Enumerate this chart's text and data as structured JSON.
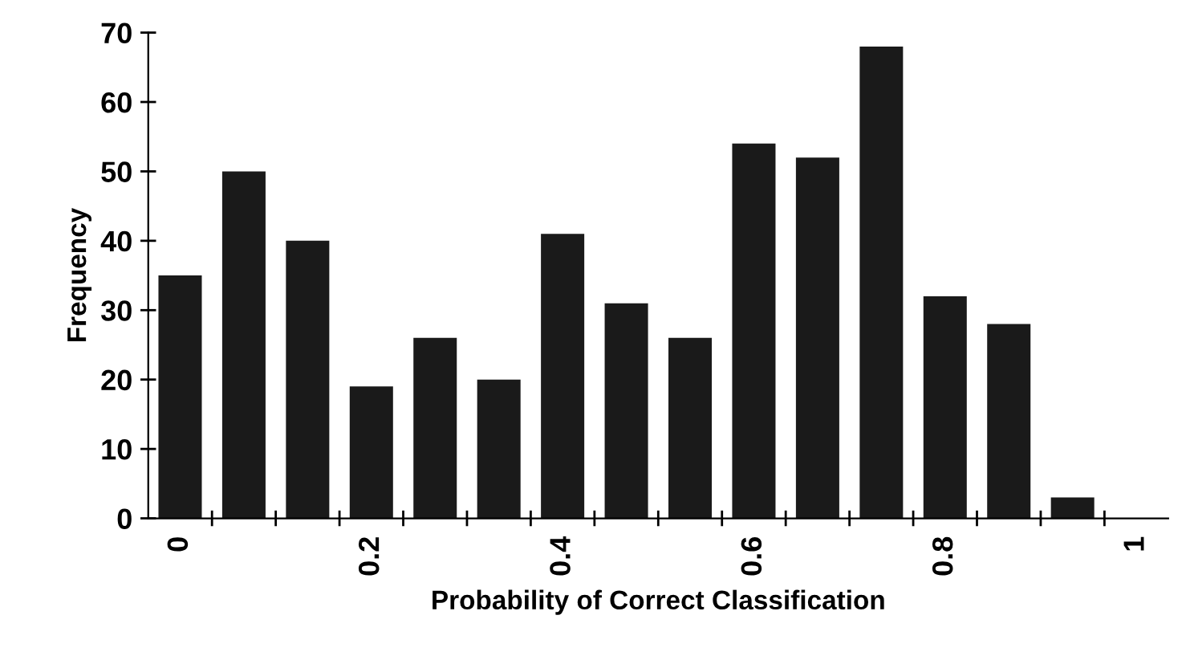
{
  "chart_data": {
    "type": "bar",
    "xlabel": "Probability of Correct Classification",
    "ylabel": "Frequency",
    "categories": [
      "0",
      null,
      null,
      "0.2",
      null,
      null,
      "0.4",
      null,
      null,
      "0.6",
      null,
      null,
      "0.8",
      null,
      null,
      "1"
    ],
    "values": [
      35,
      50,
      40,
      19,
      26,
      20,
      41,
      31,
      26,
      54,
      52,
      68,
      32,
      28,
      3,
      0
    ],
    "color": "#1a1a1a",
    "ylim": [
      0,
      70
    ],
    "yticks": [
      0,
      10,
      20,
      30,
      40,
      50,
      60,
      70
    ],
    "grid": false,
    "legend": false
  }
}
